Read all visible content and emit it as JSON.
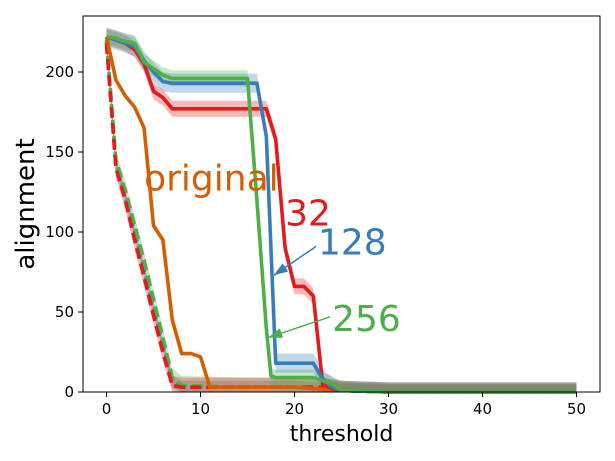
{
  "chart_data": {
    "type": "line",
    "xlabel": "threshold",
    "ylabel": "alignment",
    "xlim": [
      -2.5,
      52.5
    ],
    "ylim": [
      0,
      235
    ],
    "xticks": [
      0,
      10,
      20,
      30,
      40,
      50
    ],
    "yticks": [
      0,
      50,
      100,
      150,
      200
    ],
    "grid": false,
    "series": [
      {
        "name": "original",
        "style": "solid",
        "color": "#d55e00",
        "band": 0,
        "points": [
          [
            0,
            222
          ],
          [
            1,
            195
          ],
          [
            2,
            185
          ],
          [
            3,
            178
          ],
          [
            4,
            165
          ],
          [
            5,
            104
          ],
          [
            6,
            95
          ],
          [
            7,
            45
          ],
          [
            8,
            24
          ],
          [
            9,
            24
          ],
          [
            10,
            22
          ],
          [
            11,
            3
          ],
          [
            15,
            3
          ],
          [
            20,
            3
          ],
          [
            25,
            1
          ],
          [
            30,
            0
          ],
          [
            50,
            0
          ]
        ]
      },
      {
        "name": "32",
        "style": "solid",
        "color": "#e41a1c",
        "band": 5,
        "points": [
          [
            0,
            222
          ],
          [
            1,
            220
          ],
          [
            2,
            218
          ],
          [
            3,
            214
          ],
          [
            4,
            205
          ],
          [
            5,
            188
          ],
          [
            6,
            184
          ],
          [
            7,
            177
          ],
          [
            8,
            177
          ],
          [
            15,
            177
          ],
          [
            17,
            177
          ],
          [
            18,
            158
          ],
          [
            19,
            90
          ],
          [
            20,
            66
          ],
          [
            21,
            66
          ],
          [
            22,
            60
          ],
          [
            23,
            5
          ],
          [
            24,
            2
          ],
          [
            25,
            1
          ],
          [
            30,
            0
          ],
          [
            50,
            0
          ]
        ]
      },
      {
        "name": "128",
        "style": "solid",
        "color": "#377eb8",
        "band": 6,
        "points": [
          [
            0,
            222
          ],
          [
            1,
            220
          ],
          [
            2,
            218
          ],
          [
            3,
            216
          ],
          [
            4,
            207
          ],
          [
            5,
            200
          ],
          [
            6,
            194
          ],
          [
            7,
            193
          ],
          [
            8,
            193
          ],
          [
            16,
            193
          ],
          [
            17,
            160
          ],
          [
            18,
            18
          ],
          [
            19,
            18
          ],
          [
            22,
            18
          ],
          [
            23,
            8
          ],
          [
            24,
            3
          ],
          [
            25,
            1
          ],
          [
            30,
            0
          ],
          [
            50,
            0
          ]
        ]
      },
      {
        "name": "256",
        "style": "solid",
        "color": "#4daf4a",
        "band": 5,
        "points": [
          [
            0,
            222
          ],
          [
            1,
            221
          ],
          [
            2,
            219
          ],
          [
            3,
            218
          ],
          [
            4,
            206
          ],
          [
            5,
            202
          ],
          [
            6,
            198
          ],
          [
            7,
            196
          ],
          [
            8,
            196
          ],
          [
            15,
            196
          ],
          [
            16,
            120
          ],
          [
            17,
            40
          ],
          [
            17.5,
            10
          ],
          [
            18,
            9
          ],
          [
            22,
            9
          ],
          [
            24,
            5
          ],
          [
            25,
            1
          ],
          [
            30,
            0
          ],
          [
            50,
            0
          ]
        ]
      },
      {
        "name": "",
        "style": "dashed",
        "color": "#e41a1c",
        "band": 6,
        "points": [
          [
            0,
            218
          ],
          [
            1,
            140
          ],
          [
            2,
            120
          ],
          [
            3,
            95
          ],
          [
            4,
            72
          ],
          [
            5,
            48
          ],
          [
            6,
            25
          ],
          [
            7,
            4
          ],
          [
            8,
            3
          ],
          [
            15,
            3
          ],
          [
            20,
            3
          ],
          [
            22,
            3
          ],
          [
            23,
            3
          ],
          [
            25,
            1
          ],
          [
            30,
            0
          ],
          [
            50,
            0
          ]
        ]
      },
      {
        "name": "",
        "style": "dashed",
        "color": "#377eb8",
        "band": 4,
        "points": [
          [
            0,
            219
          ],
          [
            1,
            142
          ],
          [
            2,
            122
          ],
          [
            3,
            100
          ],
          [
            4,
            76
          ],
          [
            5,
            52
          ],
          [
            6,
            30
          ],
          [
            7,
            6
          ],
          [
            8,
            3
          ],
          [
            15,
            3
          ],
          [
            20,
            3
          ],
          [
            25,
            1
          ],
          [
            30,
            0
          ],
          [
            50,
            0
          ]
        ]
      },
      {
        "name": "",
        "style": "dashed",
        "color": "#4daf4a",
        "band": 6,
        "points": [
          [
            0,
            220
          ],
          [
            1,
            145
          ],
          [
            2,
            126
          ],
          [
            3,
            104
          ],
          [
            4,
            82
          ],
          [
            5,
            58
          ],
          [
            6,
            34
          ],
          [
            7,
            9
          ],
          [
            8,
            4
          ],
          [
            15,
            3
          ],
          [
            20,
            3
          ],
          [
            25,
            1
          ],
          [
            30,
            0
          ],
          [
            50,
            0
          ]
        ]
      }
    ],
    "annotations": [
      {
        "text": "original",
        "color": "#d55e00",
        "x": 4,
        "y": 126,
        "size": 36
      },
      {
        "text": "32",
        "color": "#e41a1c",
        "x": 19,
        "y": 104,
        "size": 36
      },
      {
        "text": "128",
        "color": "#377eb8",
        "x": 22.5,
        "y": 86,
        "size": 36
      },
      {
        "text": "256",
        "color": "#4daf4a",
        "x": 24,
        "y": 38,
        "size": 36
      }
    ],
    "arrows": [
      {
        "color": "#377eb8",
        "from": [
          22.3,
          91
        ],
        "to": [
          17.8,
          73
        ]
      },
      {
        "color": "#4daf4a",
        "from": [
          23.8,
          47
        ],
        "to": [
          17.2,
          34
        ]
      }
    ]
  }
}
